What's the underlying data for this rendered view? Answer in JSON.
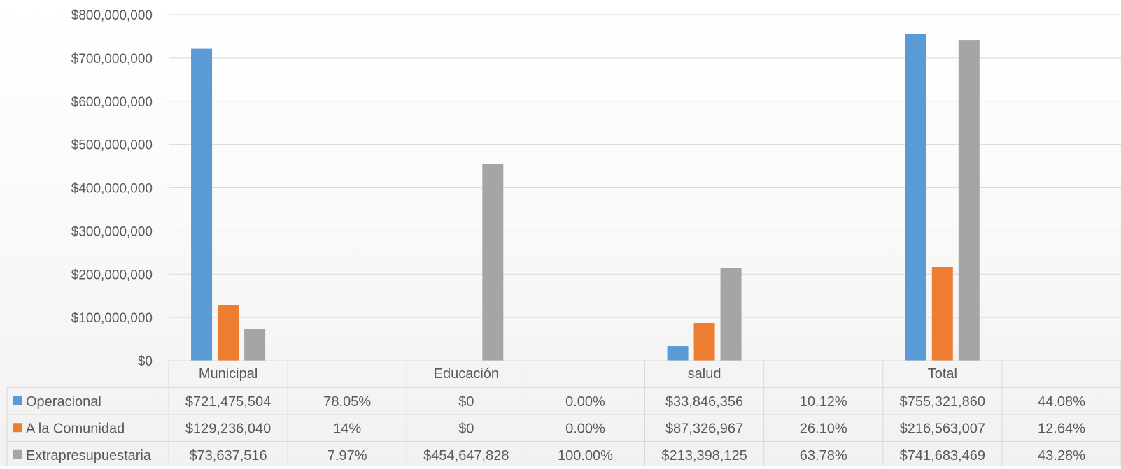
{
  "chart_data": {
    "type": "bar",
    "title": "",
    "xlabel": "",
    "ylabel": "",
    "ylim": [
      0,
      800000000
    ],
    "y_ticks": [
      0,
      100000000,
      200000000,
      300000000,
      400000000,
      500000000,
      600000000,
      700000000,
      800000000
    ],
    "y_tick_labels": [
      "$0",
      "$100,000,000",
      "$200,000,000",
      "$300,000,000",
      "$400,000,000",
      "$500,000,000",
      "$600,000,000",
      "$700,000,000",
      "$800,000,000"
    ],
    "grid": true,
    "legend_placement": "data-table-left",
    "categories": [
      "Municipal",
      "",
      "Educación",
      "",
      "salud",
      "",
      "Total",
      ""
    ],
    "series": [
      {
        "name": "Operacional",
        "color": "#5B9BD5",
        "values": [
          721475504,
          0.7805,
          0,
          0,
          33846356,
          0.1012,
          755321860,
          0.4408
        ],
        "table_labels": [
          "$721,475,504",
          "78.05%",
          "$0",
          "0.00%",
          "$33,846,356",
          "10.12%",
          "$755,321,860",
          "44.08%"
        ]
      },
      {
        "name": "A la Comunidad",
        "color": "#ED7D31",
        "values": [
          129236040,
          0.14,
          0,
          0,
          87326967,
          0.261,
          216563007,
          0.1264
        ],
        "table_labels": [
          "$129,236,040",
          "14%",
          "$0",
          "0.00%",
          "$87,326,967",
          "26.10%",
          "$216,563,007",
          "12.64%"
        ]
      },
      {
        "name": "Extrapresupuestaria",
        "color": "#A5A5A5",
        "values": [
          73637516,
          0.0797,
          454647828,
          1,
          213398125,
          0.6378,
          741683469,
          0.4328
        ],
        "table_labels": [
          "$73,637,516",
          "7.97%",
          "$454,647,828",
          "100.00%",
          "$213,398,125",
          "63.78%",
          "$741,683,469",
          "43.28%"
        ]
      }
    ]
  }
}
